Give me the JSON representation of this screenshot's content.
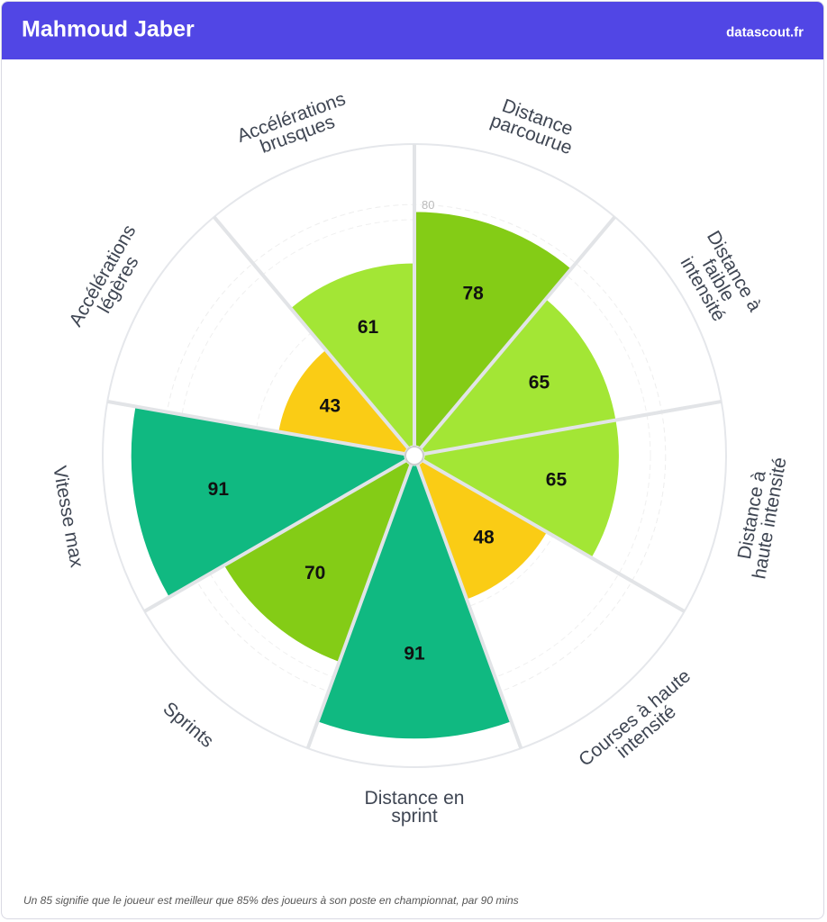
{
  "header": {
    "title": "Mahmoud Jaber",
    "site": "datascout.fr"
  },
  "footnote": "Un 85 signifie que le joueur est meilleur que 85% des joueurs à son poste en championnat, par 90 mins",
  "chart_data": {
    "type": "polar-bar",
    "categories": [
      "Distance\nparcourue",
      "Distance à\nfaible\nintensité",
      "Distance à\nhaute intensité",
      "Courses à haute\nintensité",
      "Distance en\nsprint",
      "Sprints",
      "Vitesse max",
      "Accélérations\nlégères",
      "Accélérations\nbrusques"
    ],
    "values": [
      78,
      65,
      65,
      48,
      91,
      70,
      91,
      43,
      61
    ],
    "colors": [
      "#84cc16",
      "#a3e635",
      "#a3e635",
      "#facc15",
      "#10b981",
      "#84cc16",
      "#10b981",
      "#facc15",
      "#a3e635"
    ],
    "ylim": [
      0,
      100
    ],
    "yticks": [
      80
    ]
  }
}
